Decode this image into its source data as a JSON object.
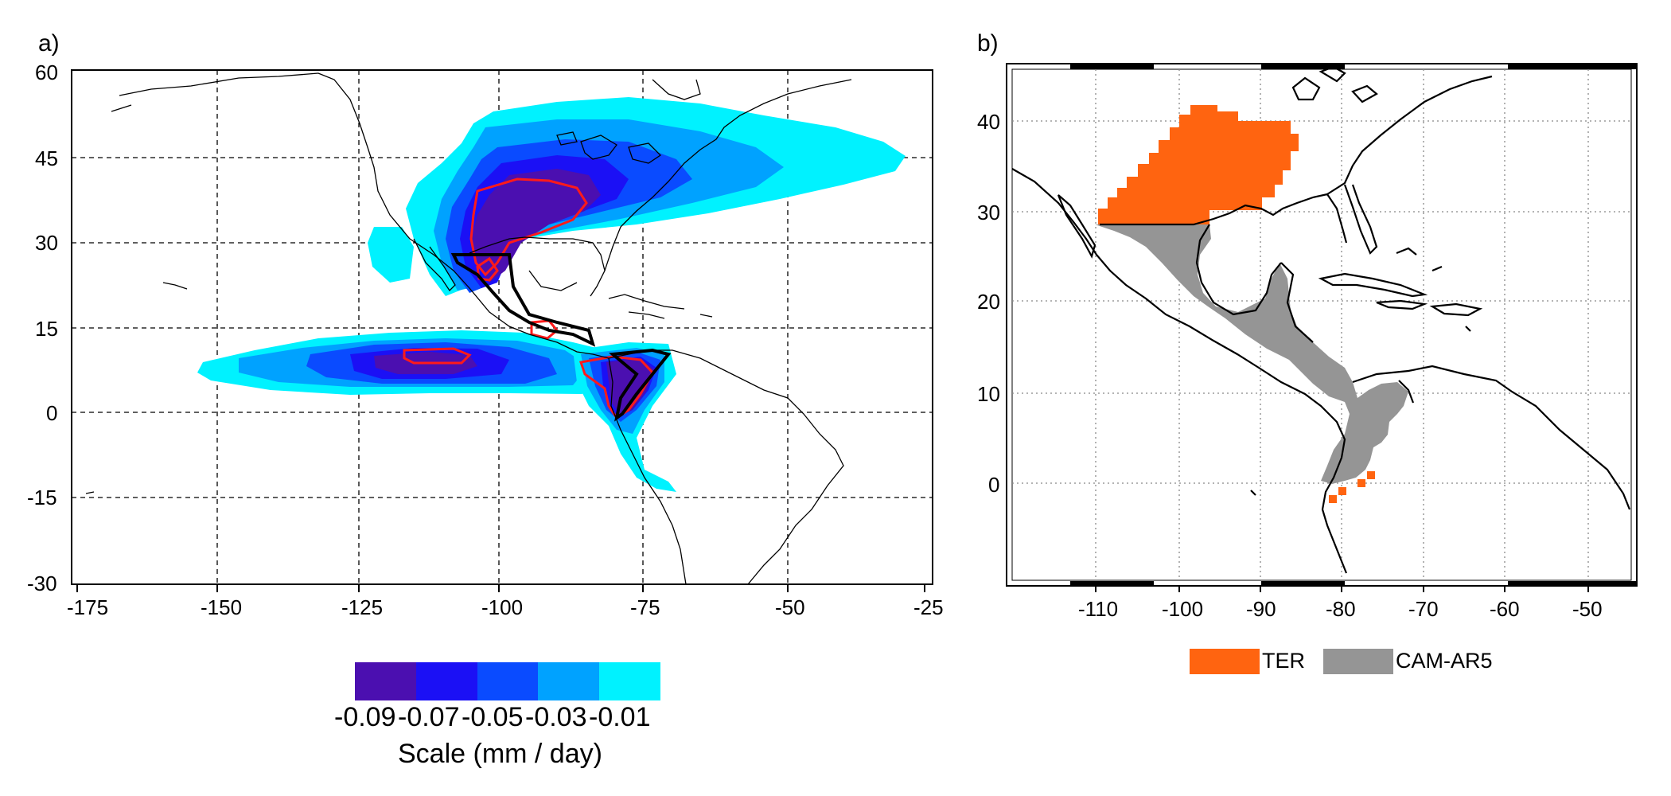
{
  "panel_a": {
    "letter": "a)",
    "x_ticks": [
      "-175",
      "-150",
      "-125",
      "-100",
      "-75",
      "-50",
      "-25"
    ],
    "y_ticks": [
      "60",
      "45",
      "30",
      "15",
      "0",
      "-15",
      "-30"
    ],
    "colorbar": {
      "colors": [
        "#4b0fb0",
        "#1b10f5",
        "#0a4bff",
        "#00a2ff",
        "#00f2ff"
      ],
      "labels": [
        "-0.09",
        "-0.07",
        "-0.05",
        "-0.03",
        "-0.01"
      ],
      "title": "Scale (mm / day)"
    }
  },
  "panel_b": {
    "letter": "b)",
    "x_ticks": [
      "-110",
      "-100",
      "-90",
      "-80",
      "-70",
      "-60",
      "-50"
    ],
    "y_ticks": [
      "40",
      "30",
      "20",
      "10",
      "0"
    ],
    "legend": [
      {
        "label": "TER",
        "color": "#ff6410"
      },
      {
        "label": "CAM-AR5",
        "color": "#959595"
      }
    ]
  }
}
